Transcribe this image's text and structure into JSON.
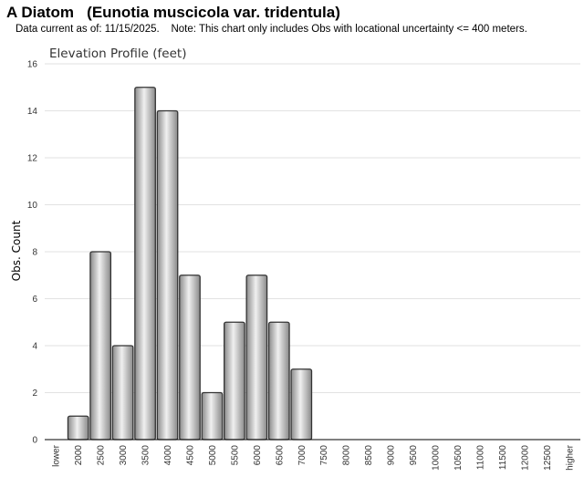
{
  "header": {
    "title": "A Diatom   (Eunotia muscicola var. tridentula)",
    "subtitle": "Data current as of: 11/15/2025.    Note: This chart only includes Obs with locational uncertainty <= 400 meters."
  },
  "chart_data": {
    "type": "bar",
    "title": "Elevation Profile (feet)",
    "xlabel": "",
    "ylabel": "Obs. Count",
    "ylim": [
      0,
      16
    ],
    "yticks": [
      0,
      2,
      4,
      6,
      8,
      10,
      12,
      14,
      16
    ],
    "grid": true,
    "categories": [
      "lower",
      "2000",
      "2500",
      "3000",
      "3500",
      "4000",
      "4500",
      "5000",
      "5500",
      "6000",
      "6500",
      "7000",
      "7500",
      "8000",
      "8500",
      "9000",
      "9500",
      "10000",
      "10500",
      "11000",
      "11500",
      "12000",
      "12500",
      "higher"
    ],
    "values": [
      0,
      1,
      8,
      4,
      15,
      14,
      7,
      2,
      5,
      7,
      5,
      3,
      0,
      0,
      0,
      0,
      0,
      0,
      0,
      0,
      0,
      0,
      0,
      0
    ],
    "colors": {
      "bar_edge": "#333333",
      "bar_light": "#f0f0f0",
      "bar_dark": "#8a8a8a",
      "grid": "#e2e2e2",
      "axis": "#000000"
    }
  }
}
